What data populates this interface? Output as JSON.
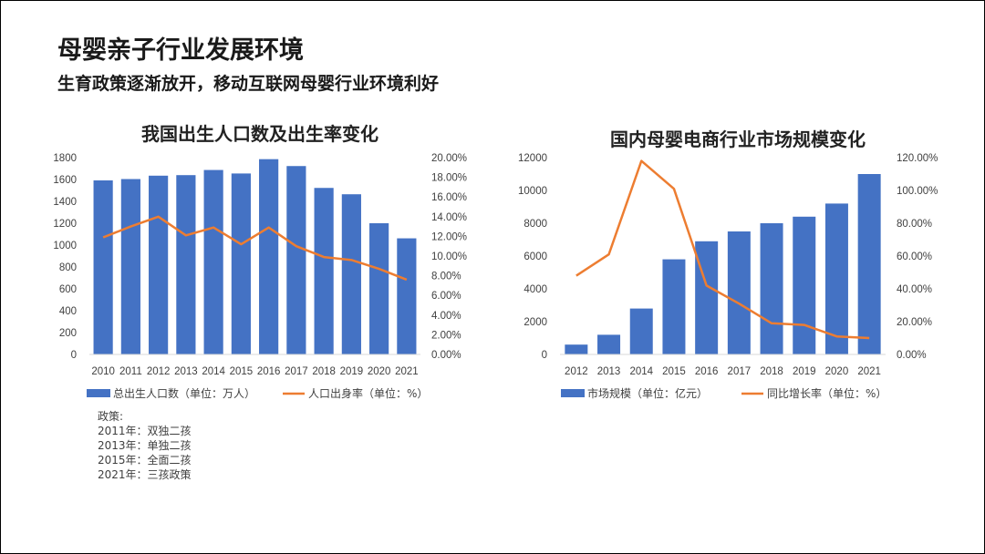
{
  "slide": {
    "title": "母婴亲子行业发展环境",
    "subtitle": "生育政策逐渐放开，移动互联网母婴行业环境利好"
  },
  "policy": {
    "heading": "政策:",
    "items": [
      "2011年：双独二孩",
      "2013年：单独二孩",
      "2015年：全面二孩",
      "2021年：三孩政策"
    ]
  },
  "colors": {
    "bar": "#4472C4",
    "line": "#ED7D31"
  },
  "chart_data": [
    {
      "type": "bar",
      "title": "我国出生人口数及出生率变化",
      "categories": [
        "2010",
        "2011",
        "2012",
        "2013",
        "2014",
        "2015",
        "2016",
        "2017",
        "2018",
        "2019",
        "2020",
        "2021"
      ],
      "series": [
        {
          "name": "总出生人口数（单位：万人）",
          "type": "bar",
          "axis": "left",
          "values": [
            1592,
            1604,
            1635,
            1640,
            1687,
            1655,
            1786,
            1723,
            1523,
            1465,
            1200,
            1062
          ]
        },
        {
          "name": "人口出身率（单位：%）",
          "type": "line",
          "axis": "right",
          "values": [
            11.9,
            13.0,
            14.0,
            12.1,
            12.9,
            11.2,
            12.9,
            11.0,
            9.9,
            9.6,
            8.7,
            7.6
          ]
        }
      ],
      "ylim_left": [
        0,
        1800
      ],
      "yticks_left": [
        "0",
        "200",
        "400",
        "600",
        "800",
        "1000",
        "1200",
        "1400",
        "1600",
        "1800"
      ],
      "ylim_right": [
        0,
        20
      ],
      "yticks_right": [
        "0.00%",
        "2.00%",
        "4.00%",
        "6.00%",
        "8.00%",
        "10.00%",
        "12.00%",
        "14.00%",
        "16.00%",
        "18.00%",
        "20.00%"
      ],
      "grid": false,
      "legend": "bottom"
    },
    {
      "type": "bar",
      "title": "国内母婴电商行业市场规模变化",
      "categories": [
        "2012",
        "2013",
        "2014",
        "2015",
        "2016",
        "2017",
        "2018",
        "2019",
        "2020",
        "2021"
      ],
      "series": [
        {
          "name": "市场规模（单位：亿元）",
          "type": "bar",
          "axis": "left",
          "values": [
            600,
            1200,
            2800,
            5800,
            6900,
            7500,
            8000,
            8400,
            9200,
            11000
          ]
        },
        {
          "name": "同比增长率（单位：%）",
          "type": "line",
          "axis": "right",
          "values": [
            48,
            61,
            118,
            101,
            42,
            31,
            19,
            18,
            11,
            10
          ]
        }
      ],
      "ylim_left": [
        0,
        12000
      ],
      "yticks_left": [
        "0",
        "2000",
        "4000",
        "6000",
        "8000",
        "10000",
        "12000"
      ],
      "ylim_right": [
        0,
        120
      ],
      "yticks_right": [
        "0.00%",
        "20.00%",
        "40.00%",
        "60.00%",
        "80.00%",
        "100.00%",
        "120.00%"
      ],
      "grid": false,
      "legend": "bottom"
    }
  ]
}
